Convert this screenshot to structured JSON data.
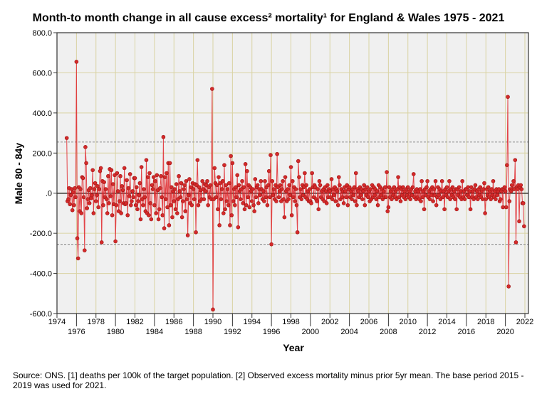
{
  "chart_data": {
    "type": "line",
    "title": "Month-to month change in all cause excess² mortality¹  for England & Wales 1975 - 2021",
    "xlabel": "Year",
    "ylabel": "Male 80 - 84y",
    "xlim": [
      1974,
      2022
    ],
    "ylim": [
      -600,
      800
    ],
    "xticks": [
      1974,
      1976,
      1978,
      1980,
      1982,
      1984,
      1986,
      1988,
      1990,
      1992,
      1994,
      1996,
      1998,
      2000,
      2002,
      2004,
      2006,
      2008,
      2010,
      2012,
      2014,
      2016,
      2018,
      2020,
      2022
    ],
    "yticks": [
      -600,
      -400,
      -200,
      0,
      200,
      400,
      600,
      800
    ],
    "ytick_labels": [
      "-600.0",
      "-400.0",
      "-200.0",
      ".0",
      "200.0",
      "400.0",
      "600.0",
      "800.0"
    ],
    "reference_lines": [
      {
        "y": 255,
        "style": "dashed"
      },
      {
        "y": 0,
        "style": "solid"
      },
      {
        "y": -255,
        "style": "dashed"
      }
    ],
    "grid": true,
    "start": {
      "year": 1975,
      "month": 1
    },
    "frequency": "monthly",
    "series": [
      {
        "name": "Male 80 - 84y",
        "color": "#e0262a",
        "values": [
          275,
          -40,
          -30,
          25,
          -55,
          -10,
          20,
          -85,
          5,
          -60,
          25,
          -20,
          655,
          -225,
          -325,
          30,
          -90,
          20,
          -100,
          80,
          75,
          -20,
          -285,
          230,
          150,
          -75,
          -30,
          15,
          -50,
          25,
          -25,
          -10,
          115,
          -100,
          20,
          50,
          -40,
          -10,
          35,
          -70,
          20,
          110,
          125,
          -245,
          60,
          -60,
          55,
          -20,
          20,
          -30,
          -100,
          85,
          -50,
          120,
          -15,
          115,
          -110,
          45,
          -55,
          90,
          -240,
          -60,
          100,
          10,
          -90,
          -40,
          85,
          -100,
          35,
          15,
          -50,
          125,
          -55,
          -50,
          65,
          -110,
          25,
          -15,
          95,
          -60,
          -40,
          10,
          -20,
          75,
          75,
          -60,
          30,
          -80,
          -40,
          -10,
          50,
          -130,
          130,
          -30,
          -60,
          20,
          -20,
          -90,
          165,
          -100,
          80,
          -110,
          100,
          -50,
          -130,
          40,
          20,
          80,
          -60,
          60,
          -100,
          90,
          15,
          -130,
          -80,
          25,
          85,
          -20,
          -110,
          280,
          -175,
          80,
          -30,
          100,
          -70,
          150,
          -160,
          150,
          -60,
          30,
          -120,
          10,
          -40,
          20,
          -80,
          45,
          -100,
          -30,
          85,
          10,
          -20,
          50,
          -120,
          -40,
          20,
          40,
          -90,
          60,
          -30,
          -210,
          -10,
          70,
          -50,
          30,
          -60,
          50,
          20,
          -30,
          45,
          -195,
          40,
          165,
          -60,
          30,
          -40,
          15,
          -30,
          60,
          20,
          -30,
          45,
          10,
          40,
          60,
          -60,
          30,
          -20,
          40,
          -30,
          520,
          -580,
          -30,
          125,
          50,
          -20,
          40,
          -80,
          80,
          -160,
          50,
          -30,
          20,
          60,
          -100,
          140,
          -80,
          40,
          -40,
          20,
          -60,
          50,
          -160,
          185,
          -110,
          150,
          -40,
          20,
          -60,
          30,
          -20,
          90,
          -170,
          40,
          10,
          -30,
          20,
          60,
          -50,
          30,
          -80,
          145,
          -60,
          110,
          -20,
          40,
          -70,
          30,
          10,
          -40,
          20,
          -60,
          -90,
          70,
          -20,
          30,
          40,
          -50,
          20,
          -10,
          60,
          20,
          -30,
          10,
          -40,
          60,
          -20,
          30,
          -60,
          40,
          110,
          -20,
          190,
          -255,
          60,
          -10,
          20,
          -30,
          40,
          -40,
          195,
          30,
          -20,
          10,
          40,
          -40,
          20,
          60,
          -30,
          -120,
          80,
          10,
          -40,
          20,
          -30,
          40,
          -10,
          130,
          -110,
          60,
          -20,
          30,
          -40,
          20,
          -60,
          -195,
          160,
          80,
          -20,
          20,
          -30,
          40,
          -10,
          30,
          100,
          -20,
          40,
          -30,
          10,
          -40,
          20,
          -40,
          -50,
          100,
          30,
          -20,
          40,
          30,
          -30,
          -40,
          20,
          -80,
          60,
          40,
          -20,
          10,
          -30,
          20,
          -40,
          30,
          10,
          -50,
          40,
          -20,
          20,
          10,
          -20,
          70,
          -30,
          20,
          -10,
          30,
          -40,
          20,
          10,
          -60,
          80,
          40,
          -30,
          20,
          -20,
          10,
          -50,
          30,
          10,
          -20,
          40,
          -60,
          20,
          30,
          -20,
          10,
          -30,
          20,
          -10,
          30,
          -40,
          100,
          -60,
          20,
          10,
          -20,
          30,
          -10,
          20,
          -30,
          10,
          40,
          -60,
          20,
          -10,
          30,
          -20,
          10,
          -40,
          20,
          -30,
          40,
          -20,
          30,
          -10,
          20,
          -30,
          10,
          -60,
          40,
          -20,
          30,
          -10,
          20,
          -30,
          10,
          -20,
          30,
          -20,
          105,
          -90,
          -70,
          30,
          -20,
          10,
          -30,
          20,
          -10,
          30,
          -20,
          10,
          -30,
          20,
          80,
          -20,
          30,
          -40,
          20,
          -10,
          30,
          -20,
          10,
          -30,
          20,
          -10,
          30,
          -20,
          10,
          -30,
          20,
          -10,
          30,
          95,
          -20,
          10,
          -30,
          20,
          -20,
          10,
          -30,
          20,
          -40,
          60,
          -20,
          10,
          -80,
          20,
          -10,
          30,
          60,
          -20,
          10,
          -30,
          20,
          -10,
          30,
          -40,
          20,
          -10,
          60,
          -60,
          -20,
          30,
          -10,
          20,
          -30,
          10,
          60,
          -20,
          10,
          -80,
          20,
          -10,
          30,
          -20,
          10,
          60,
          -30,
          20,
          -10,
          30,
          -20,
          10,
          -30,
          20,
          -80,
          20,
          -10,
          30,
          -20,
          10,
          -30,
          60,
          -20,
          10,
          -30,
          20,
          20,
          -10,
          30,
          -20,
          10,
          -80,
          30,
          -20,
          10,
          -30,
          20,
          40,
          -20,
          10,
          -30,
          20,
          -10,
          30,
          -20,
          10,
          -30,
          20,
          50,
          -100,
          -30,
          20,
          -10,
          30,
          -20,
          10,
          -30,
          20,
          -10,
          60,
          -20,
          10,
          -30,
          20,
          -10,
          10,
          20,
          -40,
          -30,
          10,
          20,
          -70,
          20,
          30,
          10,
          -70,
          140,
          480,
          -465,
          -40,
          20,
          10,
          40,
          20,
          60,
          20,
          165,
          -245,
          30,
          20,
          40,
          -140,
          30,
          40,
          20,
          -50,
          -50,
          -165
        ]
      }
    ]
  },
  "source_note": "Source: ONS. [1] deaths per 100k of the target population. [2] Observed excess mortality minus prior 5yr mean. The base period 2015 - 2019 was used for 2021."
}
